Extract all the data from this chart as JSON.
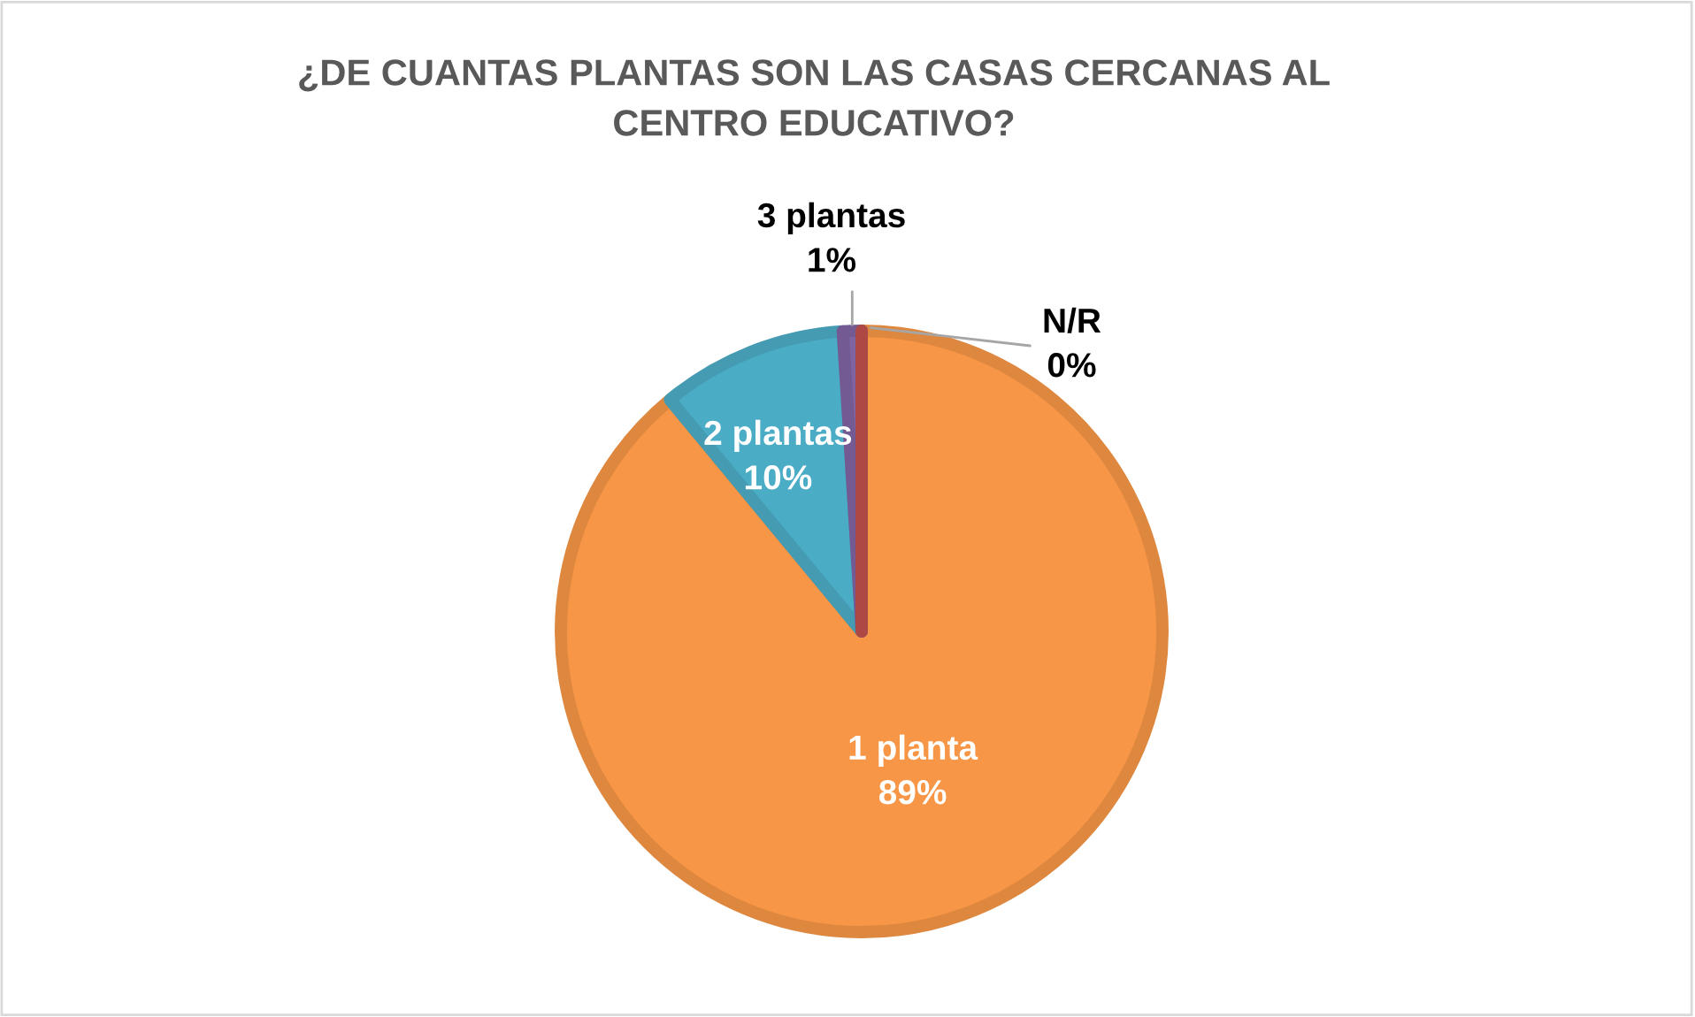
{
  "chart_data": {
    "type": "pie",
    "title": "¿DE CUANTAS PLANTAS SON LAS CASAS CERCANAS AL\nCENTRO EDUCATIVO?",
    "categories": [
      "1 planta",
      "2 plantas",
      "3 plantas",
      "N/R"
    ],
    "values": [
      89,
      10,
      1,
      0
    ],
    "value_labels": [
      "89%",
      "10%",
      "1%",
      "0%"
    ],
    "colors": [
      "#f79646",
      "#4bacc6",
      "#8064a2",
      "#c0504d"
    ]
  }
}
